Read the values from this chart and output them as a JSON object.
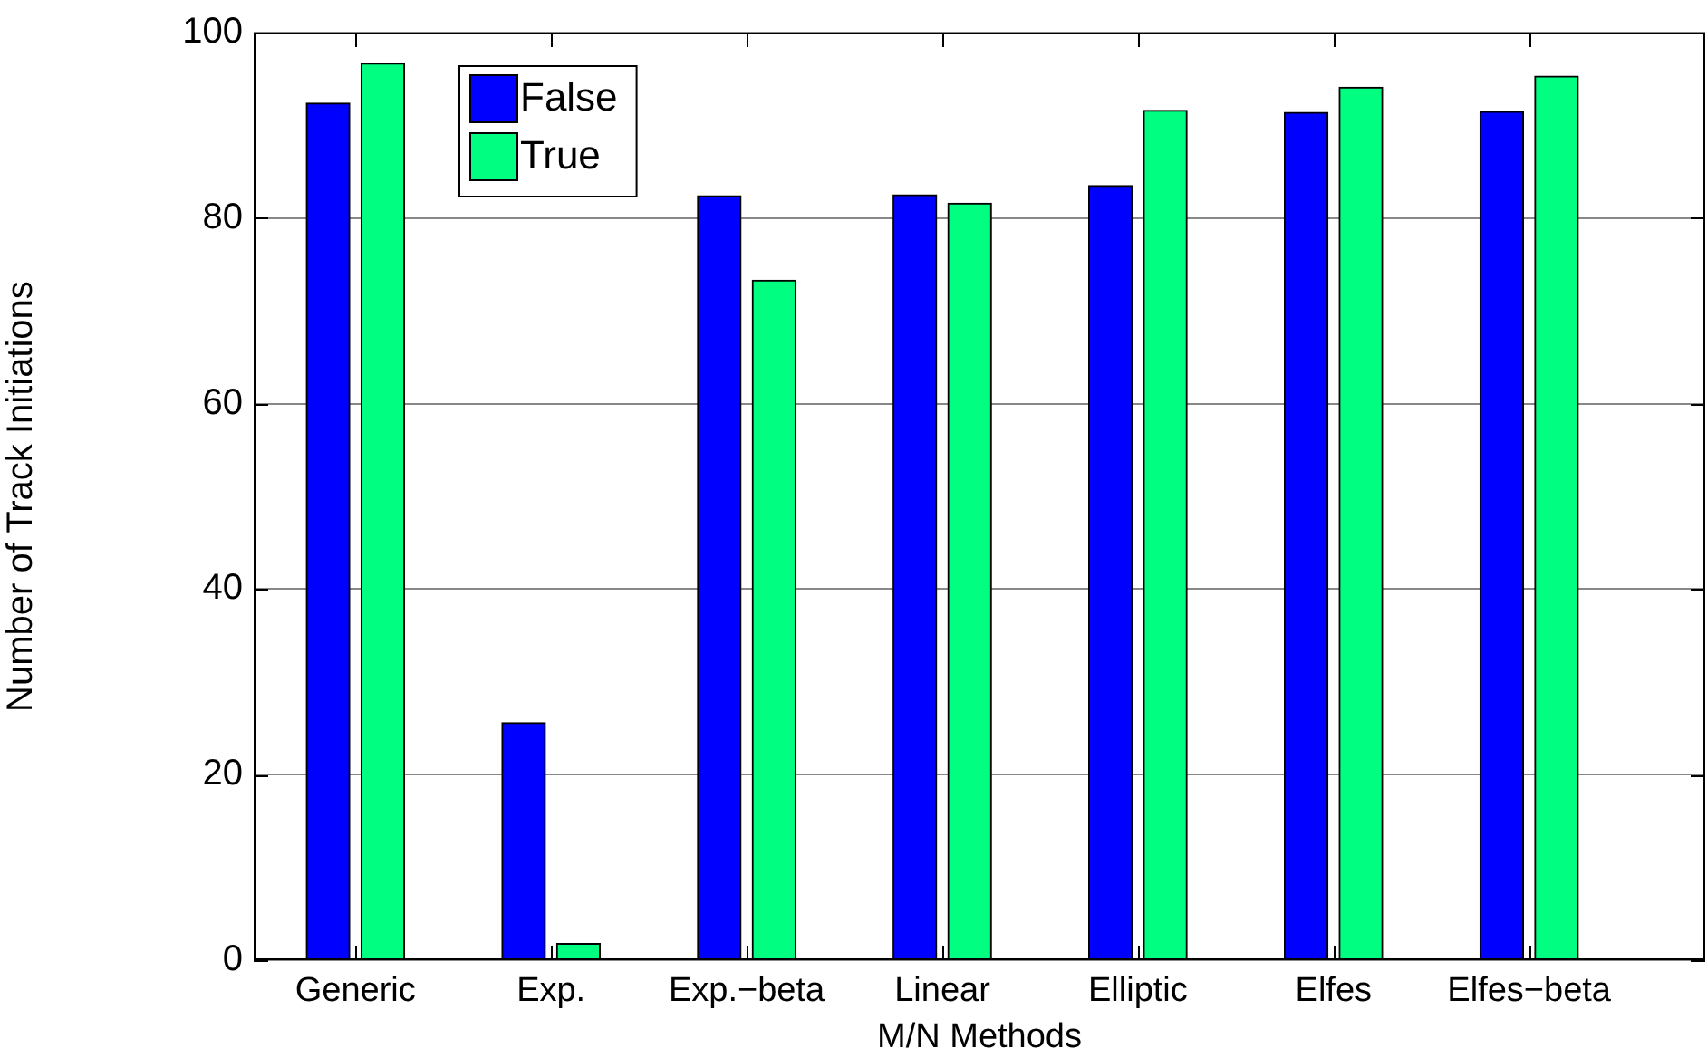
{
  "chart_data": {
    "type": "bar",
    "xlabel": "M/N Methods",
    "ylabel": "Number of Track Initiations",
    "categories": [
      "Generic",
      "Exp.",
      "Exp.−beta",
      "Linear",
      "Elliptic",
      "Elfes",
      "Elfes−beta"
    ],
    "series": [
      {
        "name": "False",
        "color": "#0000ff",
        "values": [
          92.4,
          25.6,
          82.4,
          82.5,
          83.5,
          91.4,
          91.5
        ]
      },
      {
        "name": "True",
        "color": "#00ff80",
        "values": [
          96.7,
          1.8,
          73.3,
          81.6,
          91.6,
          94.1,
          95.3
        ]
      }
    ],
    "ylim": [
      0,
      100
    ],
    "yticks": [
      0,
      20,
      40,
      60,
      80,
      100
    ],
    "grid": "y",
    "legend": "top left"
  }
}
